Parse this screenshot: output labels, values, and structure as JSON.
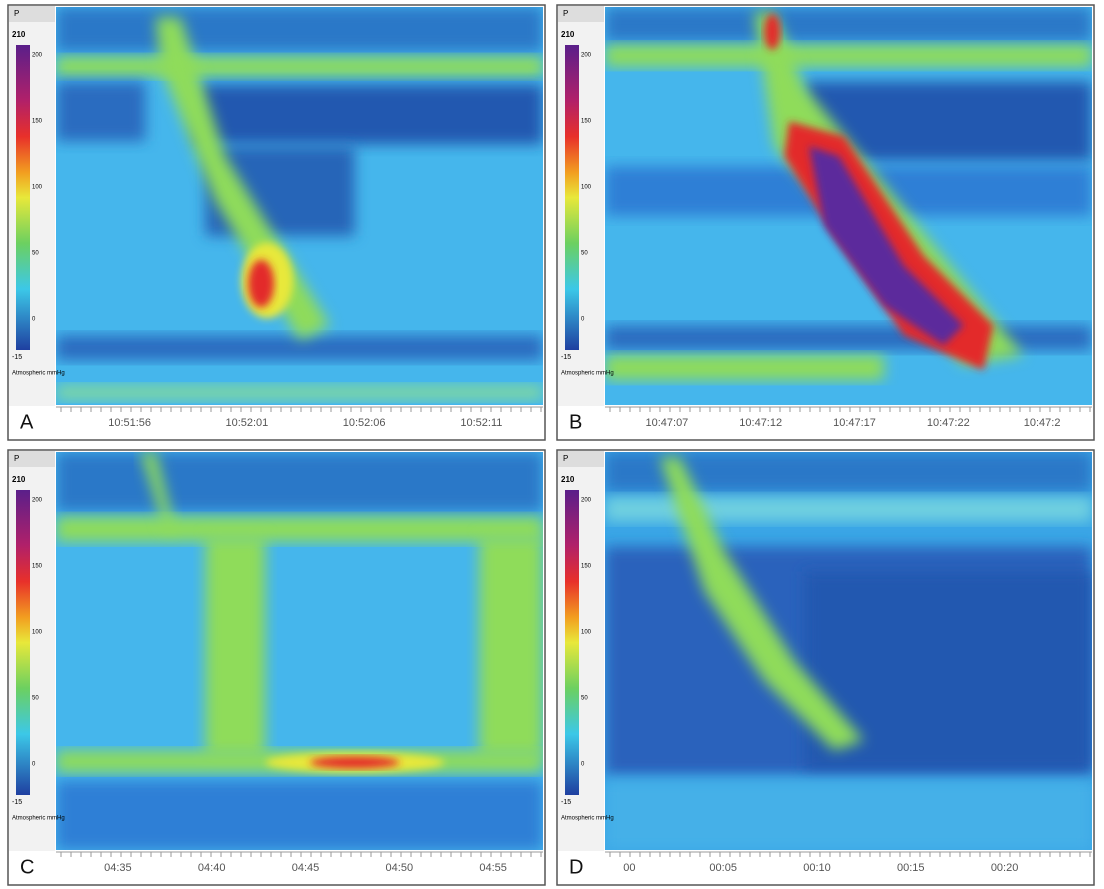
{
  "colorbar": {
    "header": "P",
    "max": "210",
    "ticks": [
      "200",
      "150",
      "100",
      "50",
      "0"
    ],
    "min": "-15",
    "unit_label": "Atmospheric mmHg"
  },
  "panels": [
    {
      "label": "A",
      "time_ticks": [
        "10:51:56",
        "10:52:01",
        "10:52:06",
        "10:52:11"
      ]
    },
    {
      "label": "B",
      "time_ticks": [
        "10:47:07",
        "10:47:12",
        "10:47:17",
        "10:47:22",
        "10:47:2"
      ]
    },
    {
      "label": "C",
      "time_ticks": [
        "04:35",
        "04:40",
        "04:45",
        "04:50",
        "04:55"
      ]
    },
    {
      "label": "D",
      "time_ticks": [
        "00",
        "00:05",
        "00:10",
        "00:15",
        "00:20"
      ]
    }
  ]
}
